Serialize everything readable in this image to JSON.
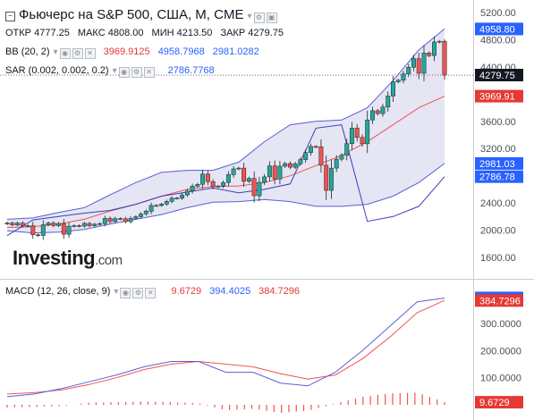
{
  "header": {
    "title": "Фьючерс на S&P 500, США, M, CME",
    "ohlc": {
      "open_label": "ОТКР",
      "open": "4777.25",
      "high_label": "МАКС",
      "high": "4808.00",
      "low_label": "МИН",
      "low": "4213.50",
      "close_label": "ЗАКР",
      "close": "4279.75"
    },
    "bb": {
      "label": "BB (20, 2)",
      "v1": "3969.9125",
      "v2": "4958.7968",
      "v3": "2981.0282"
    },
    "sar": {
      "label": "SAR (0.002, 0.002, 0.2)",
      "v1": "2786.7768"
    },
    "macd": {
      "label": "MACD (12, 26, close, 9)",
      "v1": "9.6729",
      "v2": "394.4025",
      "v3": "384.7296"
    }
  },
  "logo": {
    "text": "Investing",
    "domain": ".com"
  },
  "colors": {
    "up": "#26a69a",
    "down": "#ef5350",
    "bb_band": "#5b5fd6",
    "bb_fill": "#dcdcf0",
    "bb_basis": "#ef5350",
    "macd_line": "#5b5fd6",
    "signal_line": "#ef5350",
    "hist": "#ef5350",
    "price_tag": "#131722",
    "red_tag": "#e53935",
    "blue_tag": "#2962ff"
  },
  "chart_data": [
    {
      "type": "candlestick",
      "name": "price",
      "y_ticks": [
        1600,
        2000,
        2400,
        2800,
        3200,
        3600,
        4000,
        4400,
        4800,
        5200
      ],
      "y_tick_labels": [
        "1600.00",
        "2000.00",
        "2400.00",
        "2800.00",
        "3200.00",
        "3600.00",
        "4000.00",
        "4400.00",
        "4800.00",
        "5200.00"
      ],
      "ylim": [
        1300,
        5300
      ],
      "last": {
        "open": 4777.25,
        "high": 4808.0,
        "low": 4213.5,
        "close": 4279.75
      },
      "value_tags": [
        {
          "value": 4958.8,
          "label": "4958.80",
          "color": "#2962ff"
        },
        {
          "value": 4279.75,
          "label": "4279.75",
          "color": "#131722"
        },
        {
          "value": 3969.91,
          "label": "3969.91",
          "color": "#e53935"
        },
        {
          "value": 2981.03,
          "label": "2981.03",
          "color": "#2962ff"
        },
        {
          "value": 2786.78,
          "label": "2786.78",
          "color": "#2962ff"
        }
      ],
      "closes": [
        2105,
        2078,
        2105,
        2063,
        2065,
        1932,
        1922,
        2080,
        2105,
        2068,
        2098,
        1940,
        2059,
        2066,
        2060,
        2099,
        2065,
        2087,
        2096,
        2173,
        2127,
        2170,
        2168,
        2126,
        2174,
        2198,
        2239,
        2279,
        2364,
        2362,
        2384,
        2423,
        2470,
        2471,
        2519,
        2575,
        2647,
        2674,
        2824,
        2713,
        2640,
        2648,
        2701,
        2816,
        2901,
        2913,
        2718,
        2760,
        2506,
        2704,
        2784,
        2945,
        2752,
        2941,
        2980,
        2926,
        2976,
        3037,
        3140,
        3230,
        3226,
        2954,
        2585,
        2912,
        3044,
        3100,
        3271,
        3500,
        3363,
        3270,
        3621,
        3756,
        3714,
        3811,
        3972,
        4181,
        4204,
        4297,
        4395,
        4522,
        4307,
        4605,
        4567,
        4766,
        4777,
        4280
      ],
      "bb_upper_samples": [
        2160,
        2180,
        2260,
        2330,
        2520,
        2700,
        2850,
        2880,
        2880,
        3000,
        3300,
        3550,
        3600,
        3620,
        3800,
        4200,
        4650,
        4960
      ],
      "bb_basis_samples": [
        2040,
        2050,
        2090,
        2160,
        2280,
        2380,
        2500,
        2600,
        2640,
        2650,
        2700,
        2800,
        2950,
        3100,
        3300,
        3550,
        3800,
        3970
      ],
      "bb_lower_samples": [
        1990,
        1960,
        1970,
        2010,
        2090,
        2160,
        2230,
        2330,
        2410,
        2420,
        2450,
        2420,
        2350,
        2350,
        2380,
        2500,
        2700,
        2981
      ],
      "sar_samples": [
        1920,
        2150,
        2200,
        2250,
        2290,
        2380,
        2500,
        2560,
        2620,
        2550,
        2600,
        2680,
        3500,
        3550,
        2130,
        2200,
        2350,
        2787
      ]
    },
    {
      "type": "macd",
      "name": "MACD (12, 26, close, 9)",
      "y_ticks": [
        100,
        200,
        300
      ],
      "y_tick_labels": [
        "100.0000",
        "200.0000",
        "300.0000"
      ],
      "ylim": [
        -30,
        420
      ],
      "value_tags": [
        {
          "value": 394.4025,
          "label": "394.4025",
          "color": "#2962ff"
        },
        {
          "value": 384.7296,
          "label": "384.7296",
          "color": "#e53935"
        },
        {
          "value": 9.6729,
          "label": "9.6729",
          "color": "#e53935"
        }
      ],
      "macd_samples": [
        30,
        40,
        60,
        85,
        110,
        140,
        160,
        160,
        120,
        120,
        80,
        70,
        120,
        200,
        290,
        380,
        394
      ],
      "signal_samples": [
        40,
        45,
        55,
        75,
        100,
        130,
        150,
        160,
        150,
        140,
        115,
        95,
        110,
        170,
        250,
        340,
        385
      ],
      "hist_samples": [
        -10,
        -8,
        -5,
        8,
        10,
        12,
        10,
        6,
        -20,
        -15,
        -30,
        -22,
        4,
        30,
        42,
        45,
        10
      ]
    }
  ]
}
